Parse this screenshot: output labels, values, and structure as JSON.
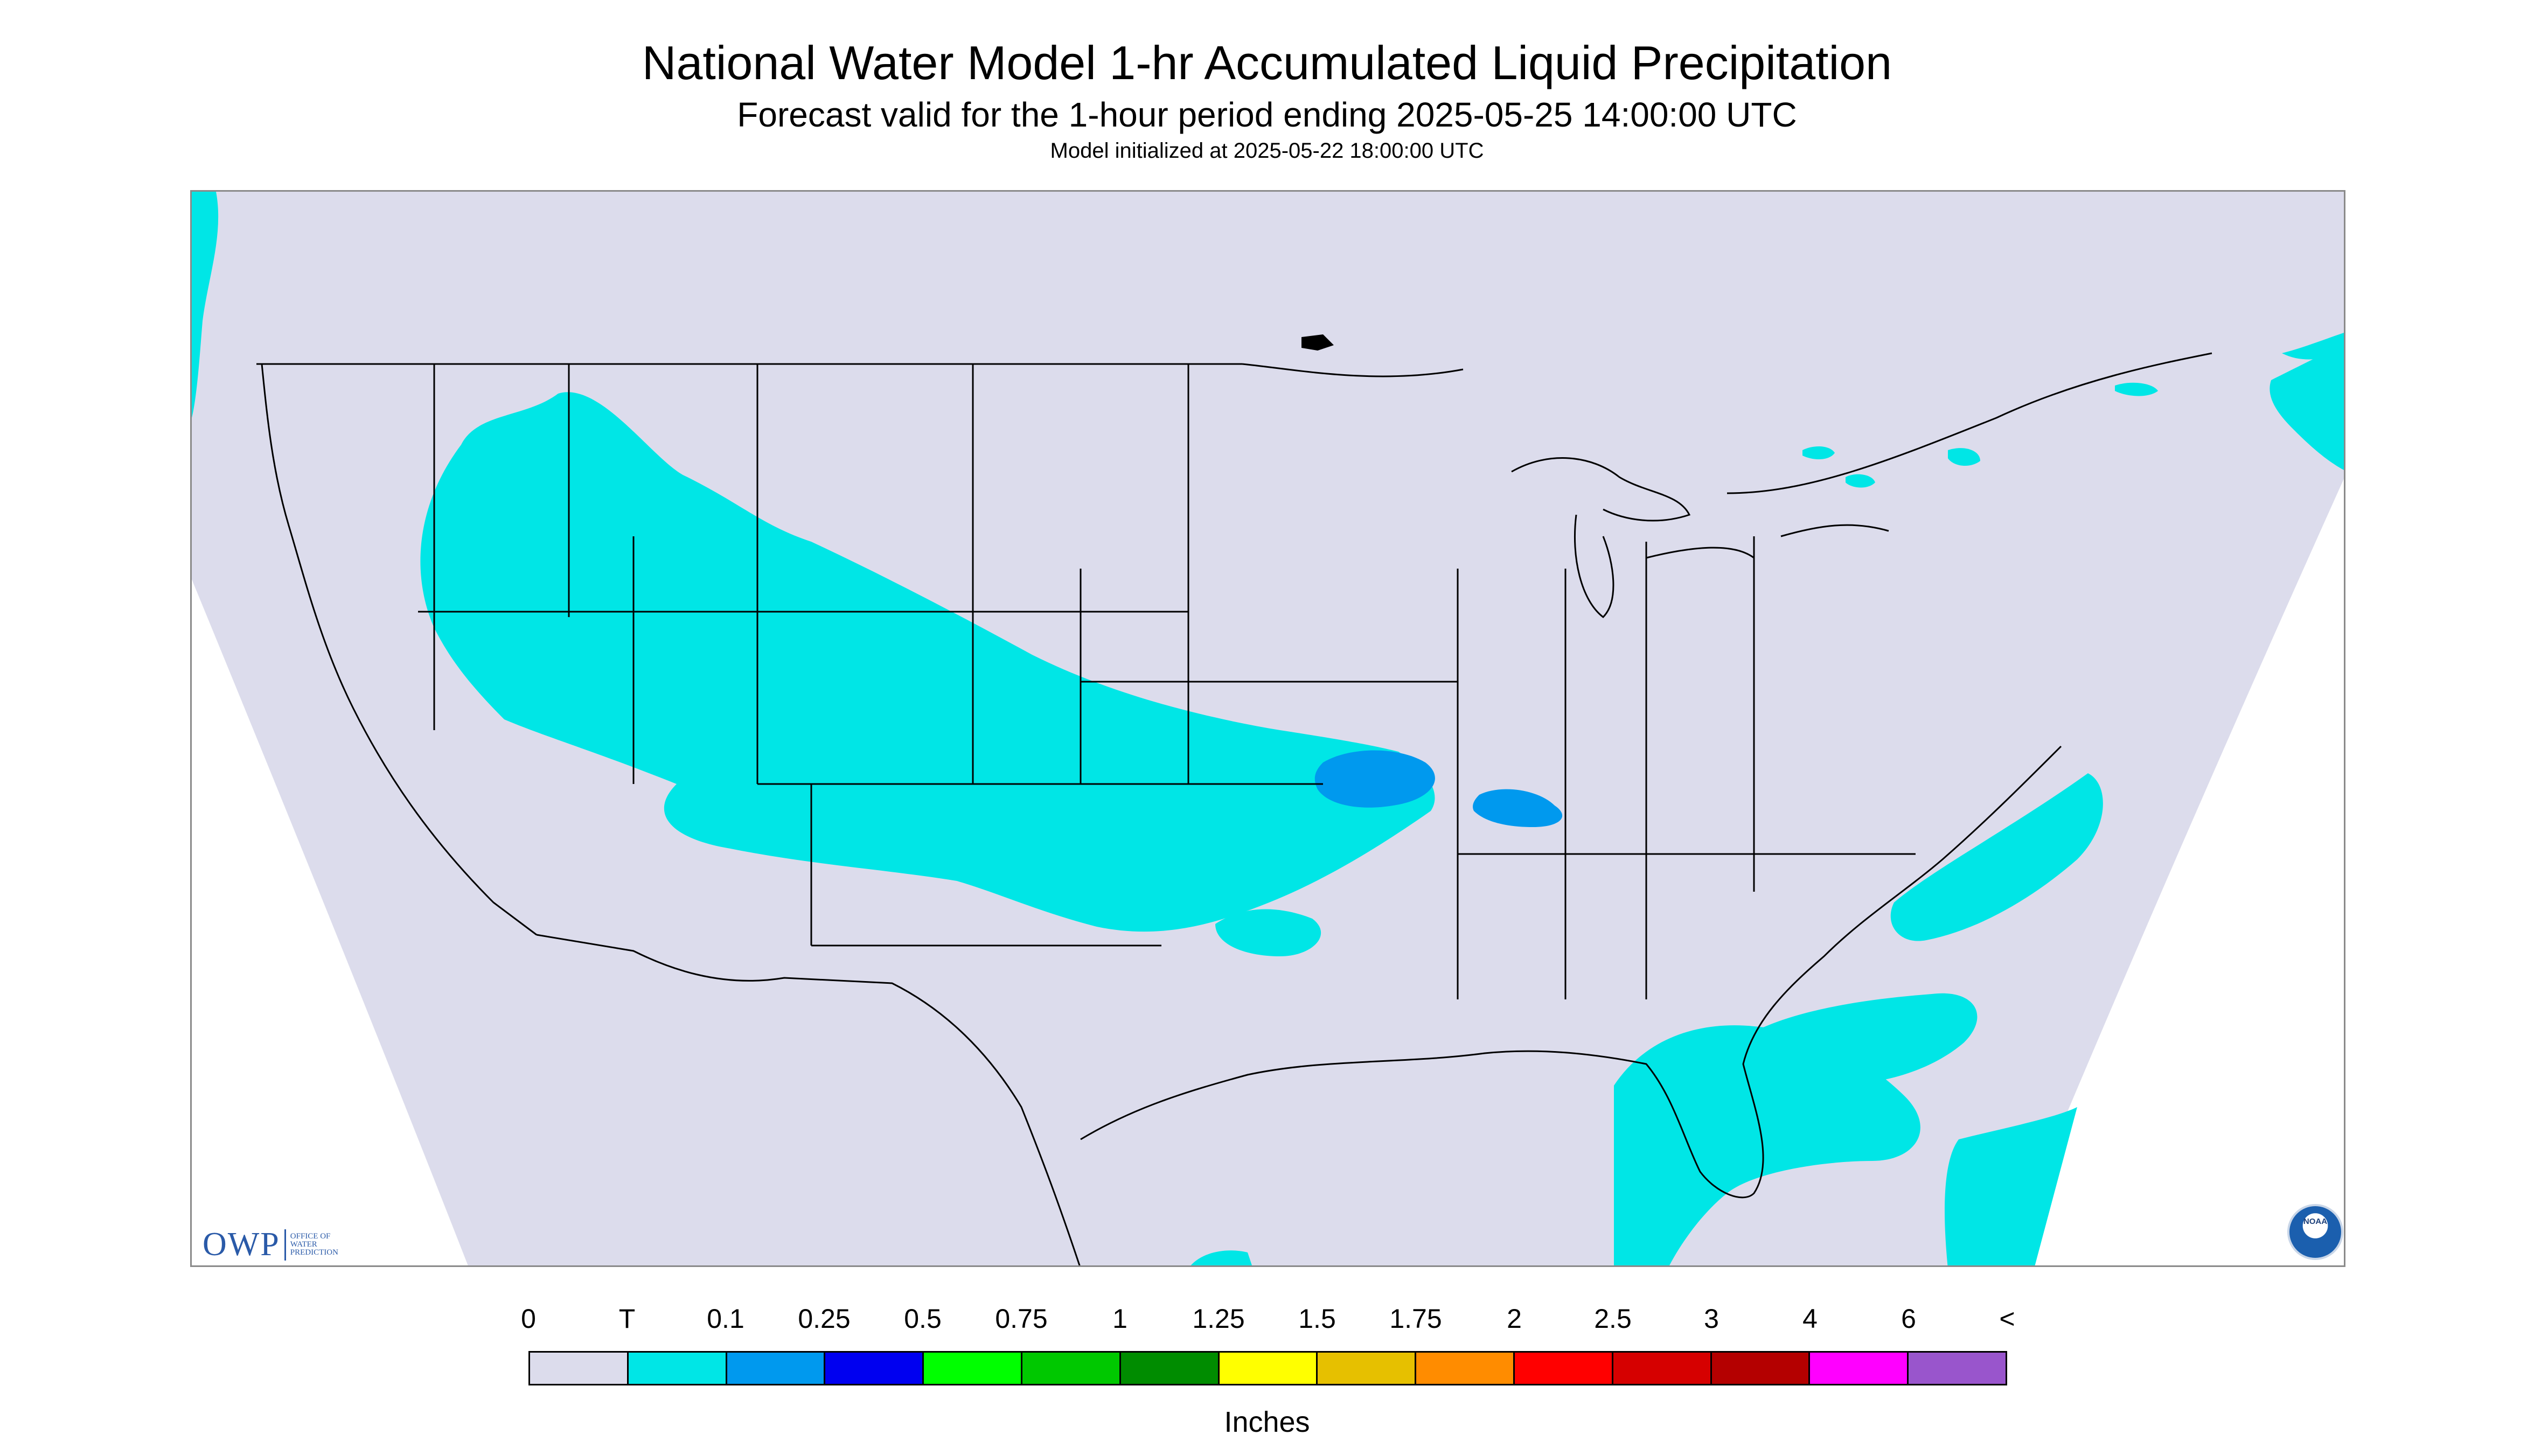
{
  "title": "National Water Model 1-hr Accumulated Liquid Precipitation",
  "subtitle": "Forecast valid for the 1-hour period ending 2025-05-25 14:00:00 UTC",
  "init_line": "Model initialized at 2025-05-22 18:00:00 UTC",
  "logos": {
    "owp_mark": "OWP",
    "owp_text": [
      "OFFICE OF",
      "WATER",
      "PREDICTION"
    ],
    "noaa_text": "NOAA"
  },
  "legend": {
    "labels": [
      "0",
      "T",
      "0.1",
      "0.25",
      "0.5",
      "0.75",
      "1",
      "1.25",
      "1.5",
      "1.75",
      "2",
      "2.5",
      "3",
      "4",
      "6",
      "<"
    ],
    "colors": [
      "#dcdcec",
      "#00e6e6",
      "#0099ee",
      "#0000f0",
      "#00ff00",
      "#00c800",
      "#008c00",
      "#ffff00",
      "#e6c000",
      "#ff8c00",
      "#ff0000",
      "#d60000",
      "#b40000",
      "#ff00ff",
      "#9955cc"
    ],
    "units": "Inches"
  },
  "map": {
    "background_color": "#dcdcec",
    "outside_domain_color": "#ffffff",
    "boundary_color": "#000000",
    "precip_regions": [
      {
        "area": "central-plains-midwest-southeast-band",
        "category": "T-0.1",
        "color": "#00e6e6"
      },
      {
        "area": "kansas-missouri-core",
        "category": "0.1-0.25",
        "color": "#0099ee"
      },
      {
        "area": "arkansas-tennessee-core",
        "category": "0.1-0.25",
        "color": "#0099ee"
      },
      {
        "area": "atlantic-offshore",
        "category": "T-0.1",
        "color": "#00e6e6"
      },
      {
        "area": "pacific-northwest-coast",
        "category": "T-0.1",
        "color": "#00e6e6"
      },
      {
        "area": "new-england-maritimes",
        "category": "T-0.1",
        "color": "#00e6e6"
      }
    ]
  }
}
